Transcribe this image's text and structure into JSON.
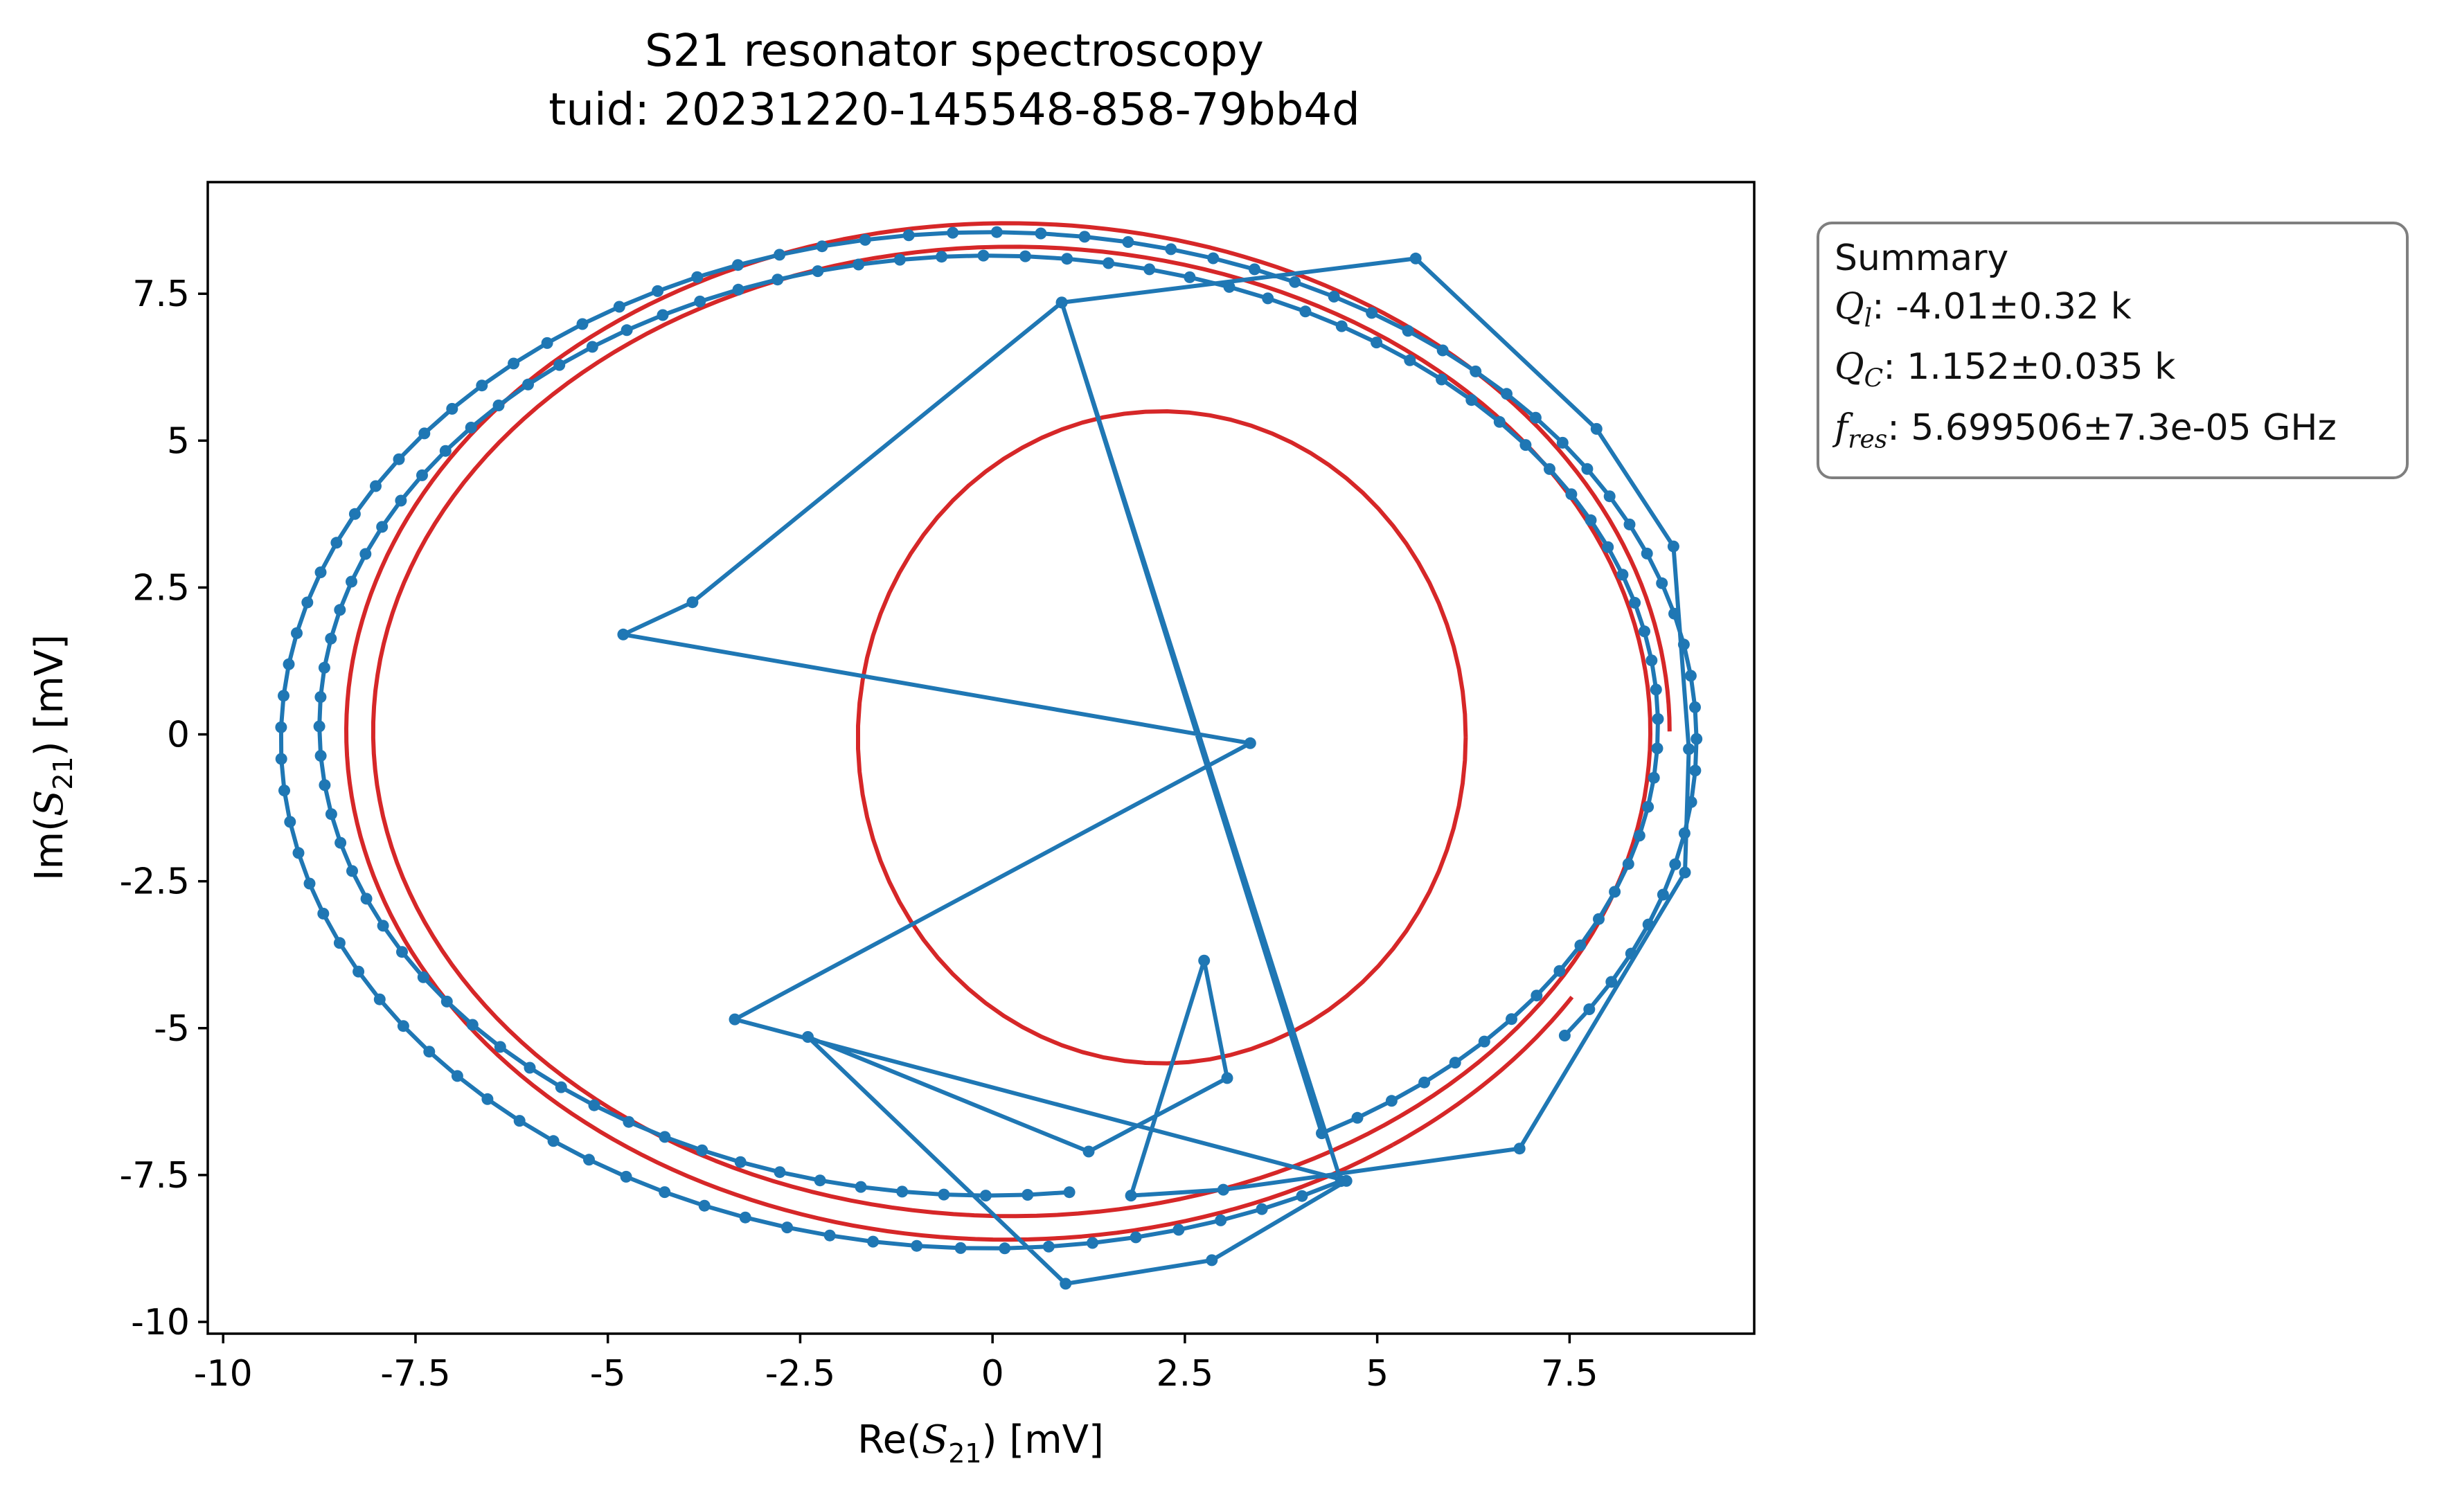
{
  "chart_data": {
    "type": "line",
    "title": "S21 resonator spectroscopy",
    "subtitle": "tuid: 20231220-145548-858-79bb4d",
    "xlabel": "Re(S21) [mV]",
    "ylabel": "Im(S21) [mV]",
    "xlim": [
      -10.2,
      9.9
    ],
    "ylim": [
      -10.2,
      9.4
    ],
    "x_ticks": [
      "-10",
      "-7.5",
      "-5",
      "-2.5",
      "0",
      "2.5",
      "5",
      "7.5"
    ],
    "y_ticks": [
      "-10",
      "-7.5",
      "-5",
      "-2.5",
      "0",
      "2.5",
      "5",
      "7.5"
    ],
    "grid": false,
    "colors": {
      "data": "#1f77b4",
      "fit": "#d62728"
    },
    "summary": {
      "heading": "Summary",
      "ql": ": -4.01±0.32 k",
      "qc": ": 1.152±0.035 k",
      "fres": ": 5.699506±7.3e-05 GHz"
    }
  }
}
